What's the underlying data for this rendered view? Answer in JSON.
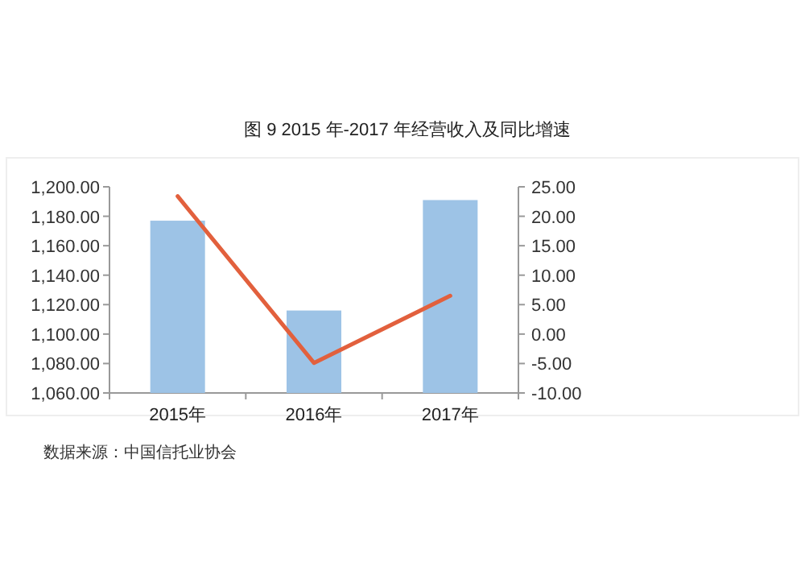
{
  "chart_data": {
    "type": "bar",
    "title": "图 9 2015 年-2017 年经营收入及同比增速",
    "categories": [
      "2015年",
      "2016年",
      "2017年"
    ],
    "series": [
      {
        "color": "#9dc3e6",
        "values": [
          1177,
          1116,
          1191
        ]
      },
      {
        "type": "line",
        "axis": "y2",
        "color": "#e2603d",
        "values": [
          23.4,
          -4.9,
          6.5
        ]
      }
    ],
    "ylim": [
      1060,
      1200
    ],
    "yticks": [
      {
        "value": 1060,
        "label": "1,060.00"
      },
      {
        "value": 1080,
        "label": "1,080.00"
      },
      {
        "value": 1100,
        "label": "1,100.00"
      },
      {
        "value": 1120,
        "label": "1,120.00"
      },
      {
        "value": 1140,
        "label": "1,140.00"
      },
      {
        "value": 1160,
        "label": "1,160.00"
      },
      {
        "value": 1180,
        "label": "1,180.00"
      },
      {
        "value": 1200,
        "label": "1,200.00"
      }
    ],
    "y2lim": [
      -10,
      25
    ],
    "y2ticks": [
      {
        "value": -10,
        "label": "-10.00"
      },
      {
        "value": -5,
        "label": "-5.00"
      },
      {
        "value": 0,
        "label": "0.00"
      },
      {
        "value": 5,
        "label": "5.00"
      },
      {
        "value": 10,
        "label": "10.00"
      },
      {
        "value": 15,
        "label": "15.00"
      },
      {
        "value": 20,
        "label": "20.00"
      },
      {
        "value": 25,
        "label": "25.00"
      }
    ],
    "annotations": [
      "数据来源：中国信托业协会"
    ]
  }
}
